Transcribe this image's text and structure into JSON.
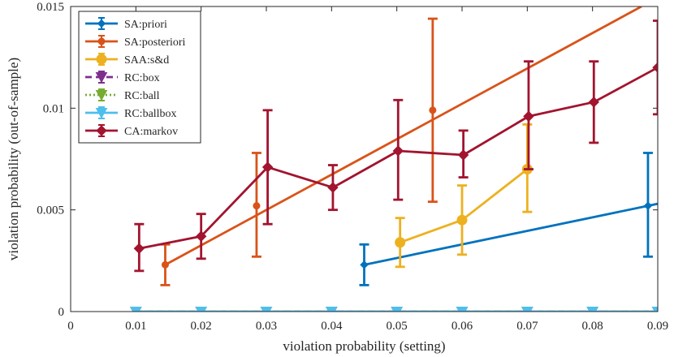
{
  "chart_data": {
    "type": "line",
    "title": "",
    "xlabel": "violation probability (setting)",
    "ylabel": "violation probability (out-of-sample)",
    "xlim": [
      0,
      0.09
    ],
    "ylim": [
      0,
      0.015
    ],
    "xticks": [
      0,
      0.01,
      0.02,
      0.03,
      0.04,
      0.05,
      0.06,
      0.07,
      0.08,
      0.09
    ],
    "xtick_labels": [
      "0",
      "0.01",
      "0.02",
      "0.03",
      "0.04",
      "0.05",
      "0.06",
      "0.07",
      "0.08",
      "0.09"
    ],
    "yticks": [
      0,
      0.005,
      0.01,
      0.015
    ],
    "ytick_labels": [
      "0",
      "0.005",
      "0.01",
      "0.015"
    ],
    "grid": false,
    "legend_position": "top-left",
    "series": [
      {
        "name": "SA:priori",
        "color": "#0072BD",
        "marker": "diamond-small",
        "dash": "solid",
        "points": [
          {
            "x": 0.045,
            "y": 0.0023,
            "lo": 0.0013,
            "hi": 0.0033
          },
          {
            "x": 0.0885,
            "y": 0.0052,
            "lo": 0.0027,
            "hi": 0.0078
          }
        ],
        "line_points": [
          [
            0.045,
            0.0023
          ],
          [
            0.09,
            0.0053
          ]
        ]
      },
      {
        "name": "SA:posteriori",
        "color": "#D95319",
        "marker": "dot",
        "dash": "solid",
        "points": [
          {
            "x": 0.0145,
            "y": 0.0023,
            "lo": 0.0013,
            "hi": 0.0033
          },
          {
            "x": 0.0285,
            "y": 0.0052,
            "lo": 0.0027,
            "hi": 0.0078
          },
          {
            "x": 0.0555,
            "y": 0.0099,
            "lo": 0.0054,
            "hi": 0.0144
          }
        ],
        "line_points": [
          [
            0.0145,
            0.0023
          ],
          [
            0.0875,
            0.015
          ]
        ]
      },
      {
        "name": "SAA:s&d",
        "color": "#EDB120",
        "marker": "circle",
        "dash": "solid",
        "points": [
          {
            "x": 0.0505,
            "y": 0.0034,
            "lo": 0.0022,
            "hi": 0.0046
          },
          {
            "x": 0.06,
            "y": 0.0045,
            "lo": 0.0028,
            "hi": 0.0062
          },
          {
            "x": 0.07,
            "y": 0.007,
            "lo": 0.0049,
            "hi": 0.0092
          }
        ]
      },
      {
        "name": "RC:box",
        "color": "#7E2F8E",
        "marker": "triangle-down",
        "dash": "dashed",
        "points": [
          {
            "x": 0.01,
            "y": 0
          },
          {
            "x": 0.02,
            "y": 0
          },
          {
            "x": 0.03,
            "y": 0
          },
          {
            "x": 0.04,
            "y": 0
          },
          {
            "x": 0.05,
            "y": 0
          },
          {
            "x": 0.06,
            "y": 0
          },
          {
            "x": 0.07,
            "y": 0
          },
          {
            "x": 0.08,
            "y": 0
          },
          {
            "x": 0.09,
            "y": 0
          }
        ]
      },
      {
        "name": "RC:ball",
        "color": "#77AC30",
        "marker": "triangle-down",
        "dash": "dotted",
        "points": [
          {
            "x": 0.01,
            "y": 0
          },
          {
            "x": 0.02,
            "y": 0
          },
          {
            "x": 0.03,
            "y": 0
          },
          {
            "x": 0.04,
            "y": 0
          },
          {
            "x": 0.05,
            "y": 0
          },
          {
            "x": 0.06,
            "y": 0
          },
          {
            "x": 0.07,
            "y": 0
          },
          {
            "x": 0.08,
            "y": 0
          },
          {
            "x": 0.09,
            "y": 0
          }
        ]
      },
      {
        "name": "RC:ballbox",
        "color": "#4DBEEE",
        "marker": "triangle-down",
        "dash": "solid",
        "points": [
          {
            "x": 0.01,
            "y": 0
          },
          {
            "x": 0.02,
            "y": 0
          },
          {
            "x": 0.03,
            "y": 0
          },
          {
            "x": 0.04,
            "y": 0
          },
          {
            "x": 0.05,
            "y": 0
          },
          {
            "x": 0.06,
            "y": 0
          },
          {
            "x": 0.07,
            "y": 0
          },
          {
            "x": 0.08,
            "y": 0
          },
          {
            "x": 0.09,
            "y": 0
          }
        ]
      },
      {
        "name": "CA:markov",
        "color": "#A2142F",
        "marker": "diamond",
        "dash": "solid",
        "points": [
          {
            "x": 0.0105,
            "y": 0.0031,
            "lo": 0.002,
            "hi": 0.0043
          },
          {
            "x": 0.02,
            "y": 0.0037,
            "lo": 0.0026,
            "hi": 0.0048
          },
          {
            "x": 0.0302,
            "y": 0.0071,
            "lo": 0.0043,
            "hi": 0.0099
          },
          {
            "x": 0.0402,
            "y": 0.0061,
            "lo": 0.005,
            "hi": 0.0072
          },
          {
            "x": 0.0502,
            "y": 0.0079,
            "lo": 0.0055,
            "hi": 0.0104
          },
          {
            "x": 0.0602,
            "y": 0.0077,
            "lo": 0.0066,
            "hi": 0.0089
          },
          {
            "x": 0.0702,
            "y": 0.0096,
            "lo": 0.007,
            "hi": 0.0123
          },
          {
            "x": 0.0802,
            "y": 0.0103,
            "lo": 0.0083,
            "hi": 0.0123
          },
          {
            "x": 0.09,
            "y": 0.012,
            "lo": 0.0097,
            "hi": 0.0143
          }
        ]
      }
    ]
  }
}
